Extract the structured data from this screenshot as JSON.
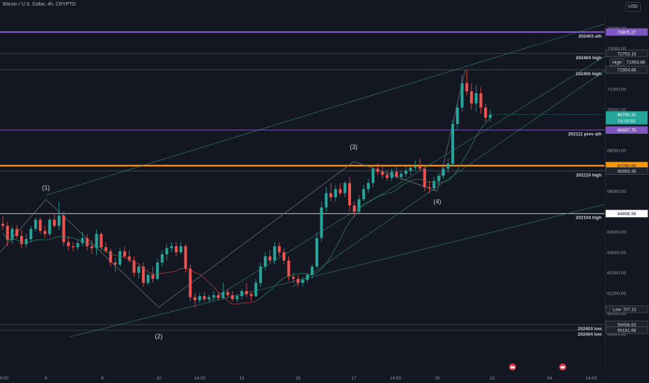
{
  "header": {
    "symbol": "Bitcoin / U.S. Dollar, 4h, CRYPTO"
  },
  "currency_button": "USD",
  "colors": {
    "background": "#131722",
    "up": "#26a69a",
    "down": "#ef5350",
    "ath_line": "#7e57c2",
    "orange_line": "#ff9800",
    "grid_text": "#b2b5be"
  },
  "chart_data": {
    "type": "candlestick",
    "y_axis": {
      "range": [
        58900,
        74800
      ],
      "ticks": [
        59000,
        60000,
        61000,
        62000,
        63000,
        64000,
        65000,
        66000,
        67000,
        68000,
        69000,
        70000,
        71000,
        72000,
        73000,
        74000
      ],
      "tick_labels": [
        "59000.00",
        "60000.00",
        "61000.00",
        "62000.00",
        "63000.00",
        "64000.00",
        "65000.00",
        "66000.00",
        "67000.00",
        "68000.00",
        "69000.00",
        "70000.00",
        "71000.00",
        "72000.00",
        "73000.00",
        "74000.00"
      ]
    },
    "x_axis": {
      "tick_labels": [
        "14:00",
        "6",
        "8",
        "10",
        "14:00",
        "13",
        "15",
        "17",
        "14:00",
        "20",
        "22",
        "24",
        "14:00"
      ]
    },
    "current_price": {
      "value": "69750.31",
      "countdown": "01:02:55"
    },
    "levels": [
      {
        "value": 73805.27,
        "label": "202403 ath",
        "price_text": "73805.27",
        "style": "ath"
      },
      {
        "value": 72753.16,
        "label": "202404 high",
        "price_text": "72753.16",
        "style": "thin"
      },
      {
        "value": 71954.66,
        "label": "202405 high",
        "price_text": "71954.66",
        "style": "thin",
        "tag": "High",
        "tag_value": "71954.66"
      },
      {
        "value": 68997.75,
        "label": "202111 prev ath",
        "price_text": "68997.75",
        "style": "purple"
      },
      {
        "value": 67250.0,
        "label": "",
        "price_text": "67250.00",
        "style": "orange"
      },
      {
        "value": 66993.35,
        "label": "202110 high",
        "price_text": "66993.35",
        "style": "thin"
      },
      {
        "value": 64898.56,
        "label": "202104 high",
        "price_text": "64898.56",
        "style": "white"
      },
      {
        "value": 60207.13,
        "label": "",
        "price_text": "60207.13",
        "style": "none",
        "tag": "Low"
      },
      {
        "value": 59458.63,
        "label": "202403 low",
        "price_text": "59458.63",
        "style": "thin"
      },
      {
        "value": 59181.68,
        "label": "202404 low",
        "price_text": "59181.68",
        "style": "thin"
      }
    ],
    "wave_labels": [
      {
        "label": "(1)",
        "value": 66000
      },
      {
        "label": "(2)",
        "value": 60000
      },
      {
        "label": "(3)",
        "value": 68000
      },
      {
        "label": "(4)",
        "value": 65800
      }
    ],
    "candles": [
      [
        64400,
        64800,
        64100,
        64300
      ],
      [
        64300,
        64500,
        63300,
        63600
      ],
      [
        63600,
        64300,
        63400,
        64150
      ],
      [
        64150,
        64350,
        63700,
        63800
      ],
      [
        63800,
        64100,
        63200,
        63400
      ],
      [
        63400,
        63900,
        63200,
        63650
      ],
      [
        63650,
        64300,
        63500,
        64150
      ],
      [
        64150,
        64700,
        64000,
        64600
      ],
      [
        64600,
        64700,
        63900,
        64050
      ],
      [
        64050,
        64300,
        63700,
        63900
      ],
      [
        63900,
        64700,
        63800,
        64600
      ],
      [
        64600,
        64900,
        64200,
        64300
      ],
      [
        64300,
        65500,
        64100,
        64800
      ],
      [
        64800,
        65000,
        63300,
        63500
      ],
      [
        63500,
        63800,
        63100,
        63300
      ],
      [
        63300,
        63500,
        63050,
        63250
      ],
      [
        63250,
        63600,
        63100,
        63450
      ],
      [
        63450,
        64000,
        63300,
        63700
      ],
      [
        63700,
        63900,
        63100,
        63300
      ],
      [
        63300,
        63600,
        62900,
        63200
      ],
      [
        63200,
        64100,
        62850,
        63900
      ],
      [
        63900,
        64000,
        63100,
        63250
      ],
      [
        63250,
        63500,
        62950,
        63050
      ],
      [
        63050,
        63200,
        62300,
        62500
      ],
      [
        62500,
        62700,
        62050,
        62400
      ],
      [
        62400,
        63200,
        62300,
        63050
      ],
      [
        63050,
        63300,
        62700,
        62800
      ],
      [
        62800,
        63100,
        62500,
        62600
      ],
      [
        62600,
        62800,
        61800,
        62000
      ],
      [
        62000,
        62400,
        61700,
        62300
      ],
      [
        62300,
        62500,
        61300,
        61500
      ],
      [
        61500,
        62000,
        61400,
        61900
      ],
      [
        61900,
        62300,
        61500,
        61700
      ],
      [
        61700,
        62700,
        61600,
        62500
      ],
      [
        62500,
        63100,
        62300,
        62900
      ],
      [
        62900,
        63400,
        62600,
        63200
      ],
      [
        63200,
        63500,
        63000,
        63300
      ],
      [
        63300,
        63500,
        62800,
        63000
      ],
      [
        63000,
        63500,
        62900,
        63300
      ],
      [
        63300,
        63400,
        62000,
        62200
      ],
      [
        62200,
        62400,
        60600,
        60800
      ],
      [
        60800,
        61000,
        60300,
        60650
      ],
      [
        60650,
        61000,
        60500,
        60850
      ],
      [
        60850,
        61050,
        60600,
        60700
      ],
      [
        60700,
        60900,
        60550,
        60800
      ],
      [
        60800,
        61100,
        60600,
        60900
      ],
      [
        60900,
        61050,
        60650,
        60750
      ],
      [
        60750,
        61500,
        60700,
        61050
      ],
      [
        61050,
        61200,
        60800,
        60900
      ],
      [
        60900,
        61100,
        60600,
        60700
      ],
      [
        60700,
        60950,
        60550,
        60850
      ],
      [
        60850,
        61200,
        60700,
        61100
      ],
      [
        61100,
        61500,
        60800,
        60950
      ],
      [
        60950,
        61100,
        60600,
        60850
      ],
      [
        60850,
        61700,
        60800,
        61500
      ],
      [
        61500,
        62500,
        61300,
        62300
      ],
      [
        62300,
        63000,
        62100,
        62800
      ],
      [
        62800,
        63100,
        62500,
        62600
      ],
      [
        62600,
        63500,
        62400,
        63300
      ],
      [
        63300,
        63500,
        62800,
        63000
      ],
      [
        63000,
        63200,
        62400,
        62600
      ],
      [
        62600,
        62800,
        61600,
        61800
      ],
      [
        61800,
        62000,
        61500,
        61700
      ],
      [
        61700,
        61900,
        61300,
        61500
      ],
      [
        61500,
        61800,
        61300,
        61650
      ],
      [
        61650,
        62000,
        61500,
        61900
      ],
      [
        61900,
        62400,
        61700,
        62300
      ],
      [
        62300,
        64000,
        62200,
        63700
      ],
      [
        63700,
        65500,
        63500,
        65200
      ],
      [
        65200,
        66200,
        65000,
        65900
      ],
      [
        65900,
        66400,
        65500,
        65700
      ],
      [
        65700,
        66300,
        65500,
        66100
      ],
      [
        66100,
        66400,
        65800,
        65900
      ],
      [
        65900,
        66500,
        65700,
        66400
      ],
      [
        66400,
        66700,
        65000,
        65300
      ],
      [
        65300,
        65500,
        64700,
        65000
      ],
      [
        65000,
        65800,
        64900,
        65600
      ],
      [
        65600,
        66300,
        65500,
        66100
      ],
      [
        66100,
        66600,
        65900,
        66400
      ],
      [
        66400,
        67250,
        66200,
        67100
      ],
      [
        67100,
        67350,
        66800,
        66950
      ],
      [
        66950,
        67300,
        66600,
        66800
      ],
      [
        66800,
        67000,
        66500,
        66650
      ],
      [
        66650,
        67100,
        66500,
        66950
      ],
      [
        66950,
        67200,
        66600,
        66700
      ],
      [
        66700,
        67000,
        66550,
        66850
      ],
      [
        66850,
        67200,
        66700,
        67000
      ],
      [
        67000,
        67300,
        66800,
        67150
      ],
      [
        67150,
        67500,
        67000,
        67200
      ],
      [
        67200,
        67600,
        67000,
        67100
      ],
      [
        67100,
        67300,
        66000,
        66200
      ],
      [
        66200,
        66500,
        65900,
        66150
      ],
      [
        66150,
        66700,
        66000,
        66500
      ],
      [
        66500,
        66900,
        66300,
        66750
      ],
      [
        66750,
        67200,
        66600,
        67100
      ],
      [
        67100,
        67600,
        66900,
        67350
      ],
      [
        67350,
        69500,
        67200,
        69300
      ],
      [
        69300,
        70300,
        69000,
        70100
      ],
      [
        70100,
        71700,
        69900,
        71300
      ],
      [
        71300,
        71954,
        70700,
        70900
      ],
      [
        70900,
        71300,
        70000,
        70300
      ],
      [
        70300,
        71200,
        69900,
        70800
      ],
      [
        70800,
        71100,
        69800,
        70100
      ],
      [
        70100,
        70300,
        69400,
        69600
      ],
      [
        69600,
        70000,
        69400,
        69750
      ]
    ]
  }
}
